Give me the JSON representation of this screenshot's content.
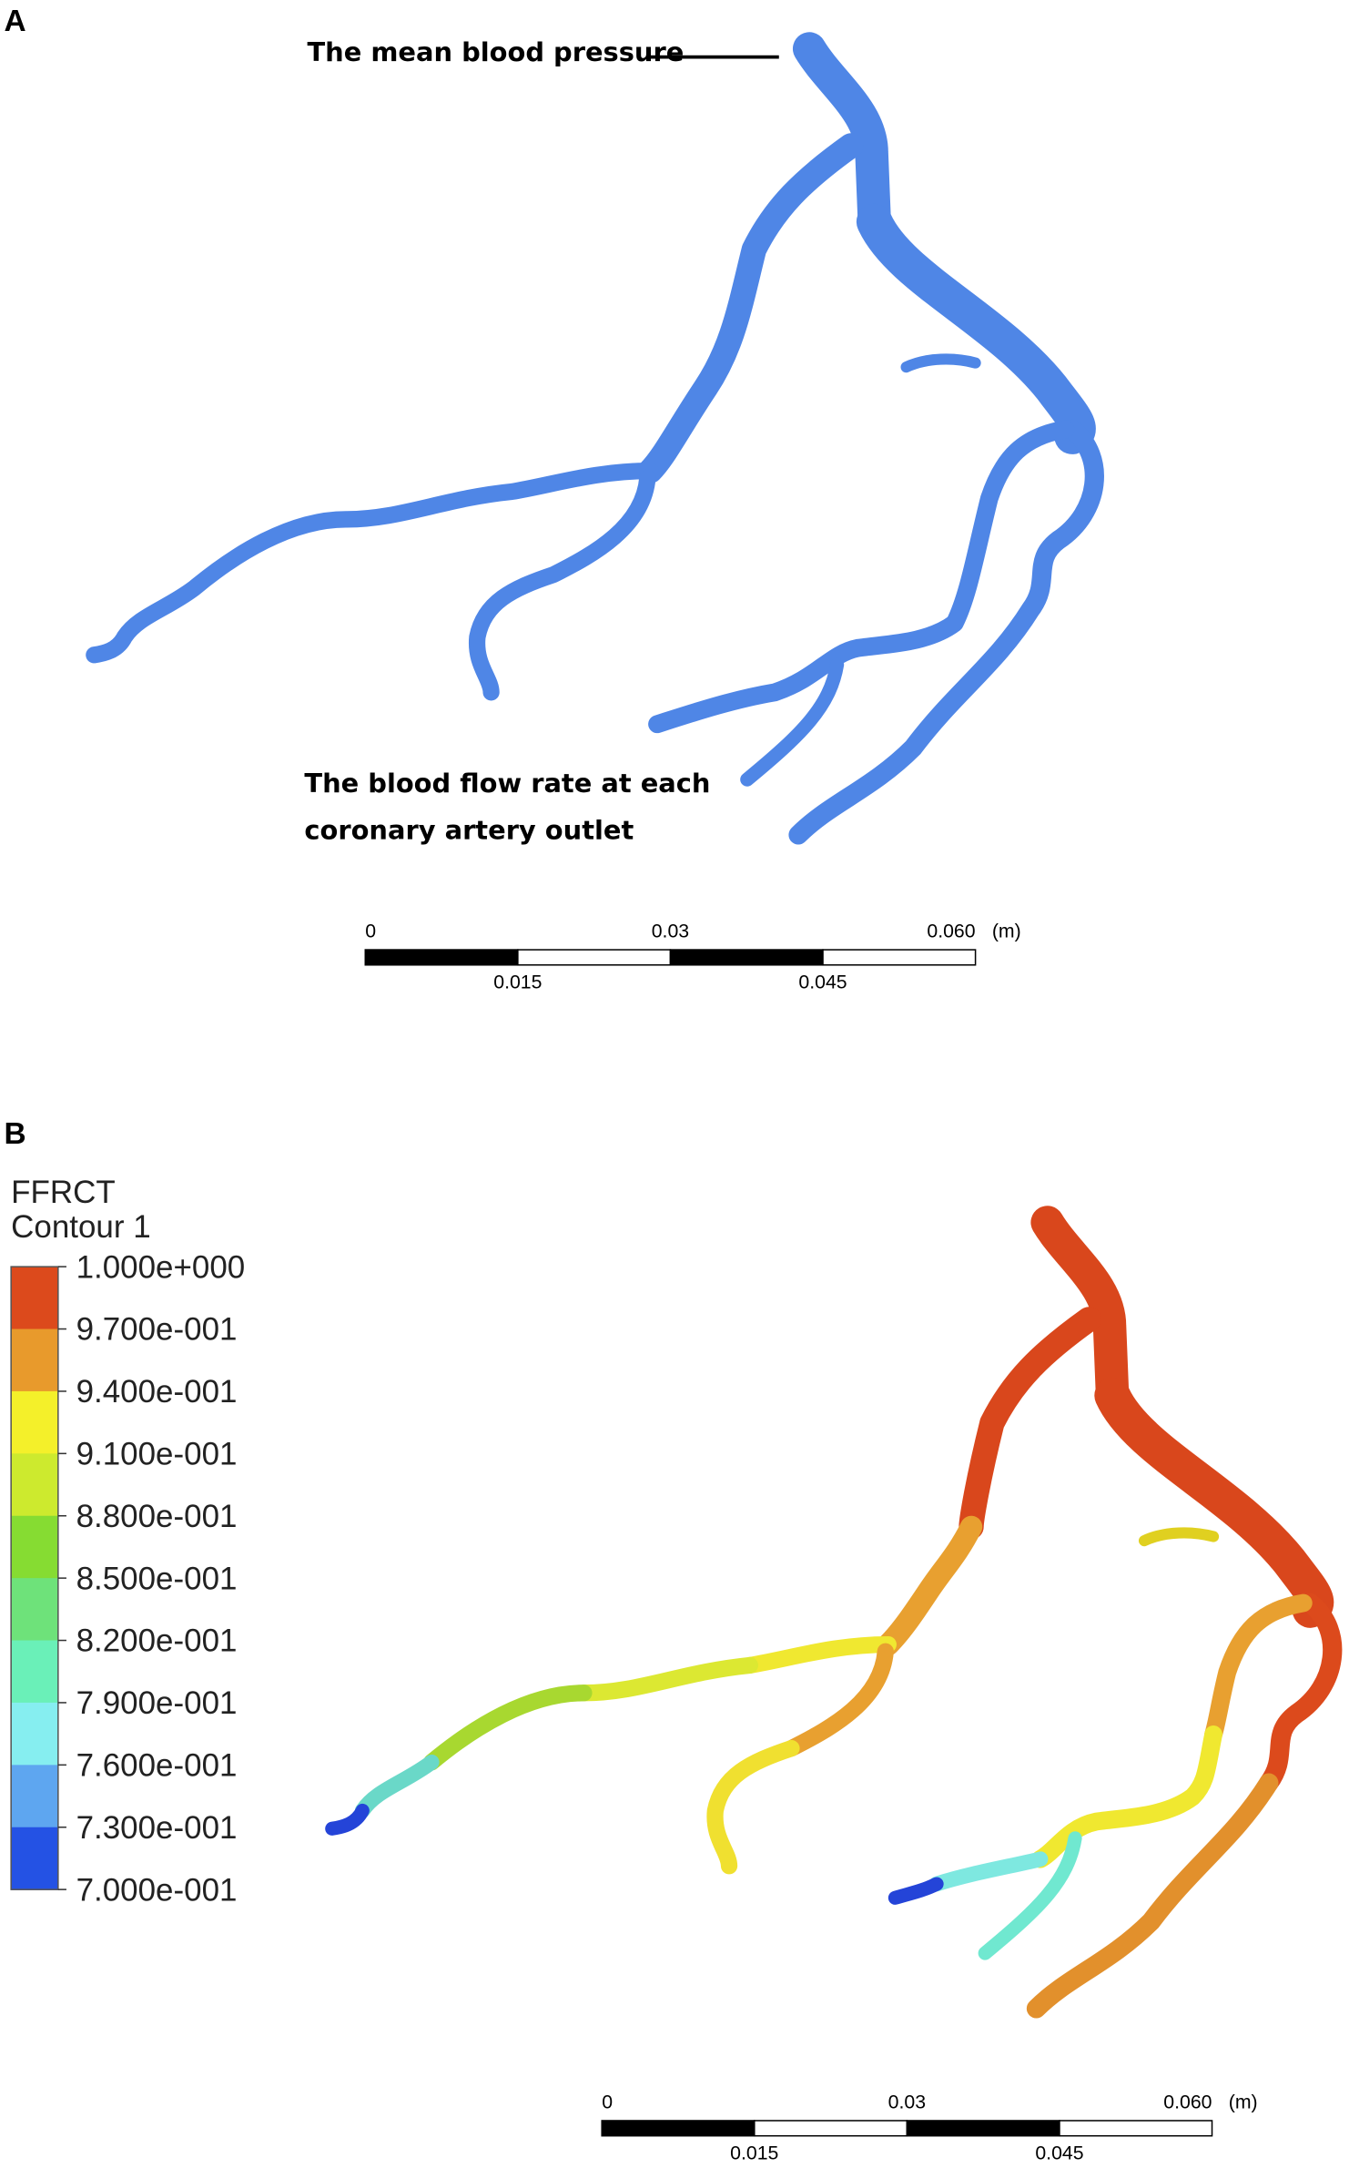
{
  "panel_a": {
    "label": "A",
    "top_annotation": "The mean blood pressure",
    "bottom_annotation": [
      "The blood flow rate at each",
      "coronary artery outlet"
    ],
    "scale_bar": {
      "top_labels": [
        "0",
        "0.03",
        "0.060"
      ],
      "unit": "(m)",
      "bottom_labels": [
        "0.015",
        "0.045"
      ]
    }
  },
  "panel_b": {
    "label": "B",
    "legend": {
      "title": "FFRCT",
      "subtitle": "Contour 1",
      "labels": [
        "1.000e+000",
        "9.700e-001",
        "9.400e-001",
        "9.100e-001",
        "8.800e-001",
        "8.500e-001",
        "8.200e-001",
        "7.900e-001",
        "7.600e-001",
        "7.300e-001",
        "7.000e-001"
      ],
      "colors": [
        "#dc4a1c",
        "#e89a2c",
        "#f4f02a",
        "#cdea2e",
        "#86dc32",
        "#6ee27a",
        "#6af0b8",
        "#86eef0",
        "#5ea6f0",
        "#2452e4"
      ]
    },
    "scale_bar": {
      "top_labels": [
        "0",
        "0.03",
        "0.060"
      ],
      "unit": "(m)",
      "bottom_labels": [
        "0.015",
        "0.045"
      ]
    }
  }
}
